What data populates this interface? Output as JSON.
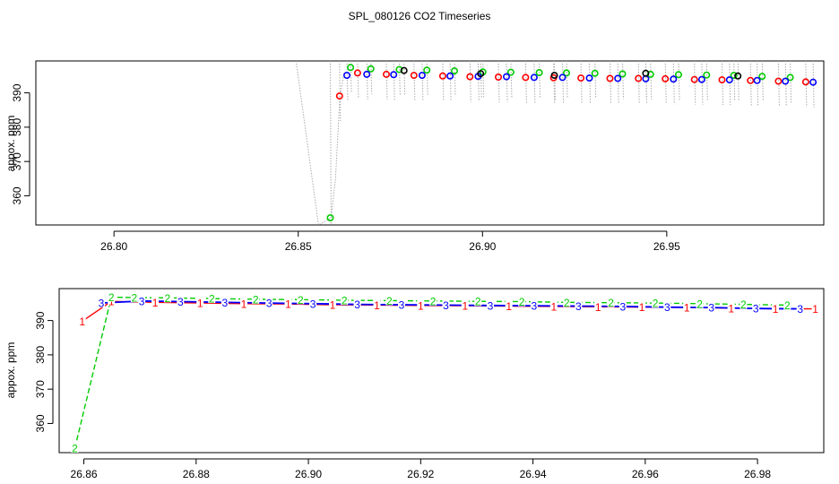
{
  "title": "SPL_080126  CO2 Timeseries",
  "colors": {
    "sensor_1": "#ff0000",
    "sensor_2": "#00cc00",
    "sensor_3": "#0000ff",
    "extra": "#000000",
    "trace": "#aaaaaa",
    "axis": "#000000"
  },
  "chart_data": [
    {
      "type": "scatter",
      "title": "",
      "ylabel": "appox. ppm",
      "xlabel": "",
      "xlim": [
        26.7788,
        26.9926
      ],
      "ylim": [
        351.5,
        399.3
      ],
      "x_ticks": [
        "26.80",
        "26.85",
        "26.90",
        "26.95"
      ],
      "x_tick_values": [
        26.8,
        26.85,
        26.9,
        26.95
      ],
      "y_ticks": [
        "360",
        "370",
        "380",
        "390"
      ],
      "y_tick_values": [
        360,
        370,
        380,
        390
      ],
      "marker": "open-circle",
      "trace_series": {
        "name": "",
        "x": [
          26.8494,
          26.8555,
          26.8589,
          26.8601,
          26.8613,
          26.8625
        ],
        "y": [
          399.3,
          351.5,
          353.5,
          365.0,
          389.0,
          396.0
        ]
      },
      "series": [
        {
          "name": "1",
          "color_key": "sensor_1",
          "x": [
            26.8612,
            26.8661,
            26.8739,
            26.8814,
            26.8892,
            26.8966,
            26.9043,
            26.9117,
            26.9193,
            26.9267,
            26.9346,
            26.9423,
            26.9496,
            26.9575,
            26.965,
            26.9727,
            26.9803,
            26.9877
          ],
          "y": [
            389.1,
            395.8,
            395.4,
            395.1,
            394.9,
            394.7,
            394.6,
            394.5,
            394.4,
            394.3,
            394.2,
            394.2,
            394.1,
            393.9,
            393.8,
            393.6,
            393.4,
            393.2
          ]
        },
        {
          "name": "2",
          "color_key": "sensor_2",
          "x": [
            26.8587,
            26.8642,
            26.8697,
            26.8774,
            26.8849,
            26.8924,
            26.9001,
            26.9077,
            26.9154,
            26.9228,
            26.9305,
            26.938,
            26.9456,
            26.9532,
            26.9608,
            26.9682,
            26.9759,
            26.9835
          ],
          "y": [
            353.6,
            397.4,
            397.0,
            396.8,
            396.6,
            396.4,
            396.1,
            396.0,
            395.9,
            395.8,
            395.7,
            395.5,
            395.4,
            395.3,
            395.2,
            395.1,
            394.8,
            394.5
          ]
        },
        {
          "name": "3",
          "color_key": "sensor_3",
          "x": [
            26.8632,
            26.8686,
            26.8759,
            26.8836,
            26.8912,
            26.8988,
            26.9065,
            26.914,
            26.9217,
            26.929,
            26.9367,
            26.9443,
            26.9518,
            26.9595,
            26.967,
            26.9745,
            26.9822,
            26.9897
          ],
          "y": [
            395.1,
            395.4,
            395.3,
            395.1,
            394.9,
            394.8,
            394.7,
            394.5,
            394.5,
            394.3,
            394.2,
            394.1,
            394.0,
            393.9,
            393.8,
            393.6,
            393.4,
            393.1
          ]
        },
        {
          "name": "",
          "color_key": "extra",
          "x": [
            26.8787,
            26.8995,
            26.9195,
            26.9443,
            26.9693
          ],
          "y": [
            396.5,
            395.6,
            395.1,
            395.7,
            394.9
          ]
        }
      ]
    },
    {
      "type": "line",
      "title": "",
      "ylabel": "appox. ppm",
      "xlabel": "",
      "xlim": [
        26.8556,
        26.9918
      ],
      "ylim": [
        351.5,
        399.3
      ],
      "x_ticks": [
        "26.86",
        "26.88",
        "26.90",
        "26.92",
        "26.94",
        "26.96",
        "26.98"
      ],
      "x_tick_values": [
        26.86,
        26.88,
        26.9,
        26.92,
        26.94,
        26.96,
        26.98
      ],
      "y_ticks": [
        "360",
        "370",
        "380",
        "390"
      ],
      "y_tick_values": [
        360,
        370,
        380,
        390
      ],
      "marker": "sensor-number",
      "series": [
        {
          "name": "1",
          "color_key": "sensor_1",
          "x": [
            26.8597,
            26.8649,
            26.8727,
            26.8807,
            26.8885,
            26.8964,
            26.9043,
            26.9122,
            26.92,
            26.9279,
            26.9357,
            26.9437,
            26.9516,
            26.9594,
            26.9674,
            26.9753,
            26.9832,
            26.9903
          ],
          "y": [
            389.8,
            395.6,
            395.3,
            395.1,
            394.9,
            394.8,
            394.6,
            394.5,
            394.4,
            394.3,
            394.2,
            394.1,
            394.0,
            393.9,
            393.8,
            393.6,
            393.4,
            393.4
          ]
        },
        {
          "name": "2",
          "color_key": "sensor_2",
          "x": [
            26.8584,
            26.8649,
            26.869,
            26.8749,
            26.8828,
            26.8906,
            26.8986,
            26.9064,
            26.9144,
            26.9222,
            26.9302,
            26.938,
            26.946,
            26.9539,
            26.9618,
            26.9697,
            26.9775,
            26.9853
          ],
          "y": [
            352.8,
            396.8,
            396.7,
            396.6,
            396.4,
            396.2,
            396.1,
            395.9,
            395.8,
            395.7,
            395.6,
            395.5,
            395.3,
            395.2,
            395.1,
            394.9,
            394.7,
            394.5
          ]
        },
        {
          "name": "3",
          "color_key": "sensor_3",
          "x": [
            26.8631,
            26.8703,
            26.8772,
            26.8851,
            26.893,
            26.9008,
            26.9087,
            26.9166,
            26.9245,
            26.9324,
            26.9402,
            26.9481,
            26.956,
            26.9639,
            26.9718,
            26.9797,
            26.9876
          ],
          "y": [
            395.1,
            395.7,
            395.5,
            395.3,
            395.1,
            394.9,
            394.7,
            394.6,
            394.5,
            394.4,
            394.3,
            394.2,
            394.1,
            393.9,
            393.8,
            393.5,
            393.4
          ]
        }
      ]
    }
  ]
}
